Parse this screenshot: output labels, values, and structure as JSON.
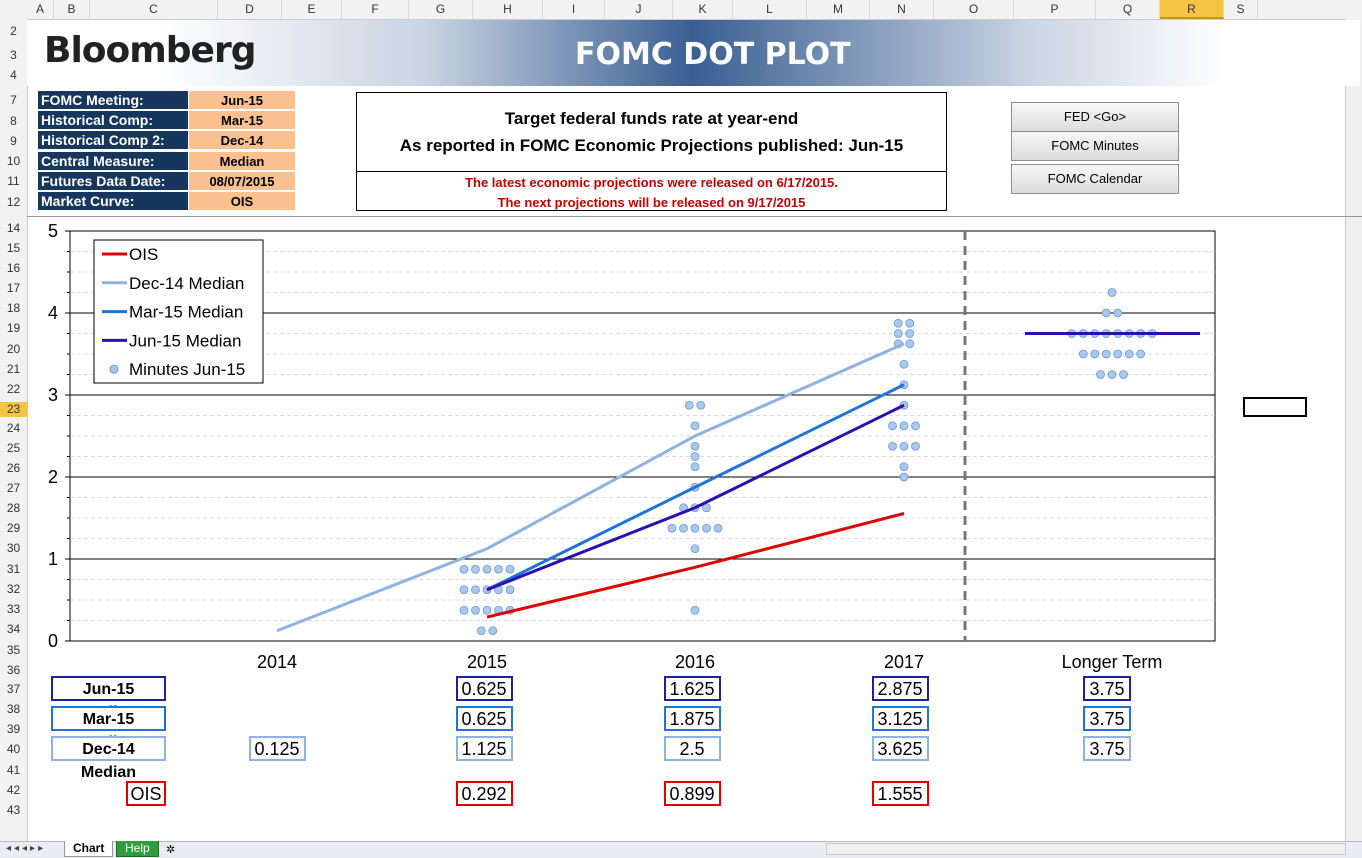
{
  "sheet": {
    "columns": [
      "A",
      "B",
      "C",
      "D",
      "E",
      "F",
      "G",
      "H",
      "I",
      "J",
      "K",
      "L",
      "M",
      "N",
      "O",
      "P",
      "Q",
      "R",
      "S"
    ],
    "rows": [
      "2",
      "3",
      "4",
      "7",
      "8",
      "9",
      "10",
      "11",
      "12",
      "14",
      "15",
      "16",
      "17",
      "18",
      "19",
      "20",
      "21",
      "22",
      "23",
      "24",
      "25",
      "26",
      "27",
      "28",
      "29",
      "30",
      "31",
      "32",
      "33",
      "34",
      "35",
      "36",
      "37",
      "38",
      "39",
      "40",
      "41",
      "42",
      "43"
    ],
    "selected_column": "R",
    "selected_row": "23",
    "tabs": [
      "Chart",
      "Help"
    ]
  },
  "banner": {
    "logo": "Bloomberg",
    "title": "FOMC DOT PLOT"
  },
  "params": [
    {
      "label": "FOMC Meeting:",
      "value": "Jun-15"
    },
    {
      "label": "Historical Comp:",
      "value": "Mar-15"
    },
    {
      "label": "Historical Comp 2:",
      "value": "Dec-14"
    },
    {
      "label": "Central Measure:",
      "value": "Median"
    },
    {
      "label": "Futures Data Date:",
      "value": "08/07/2015"
    },
    {
      "label": "Market Curve:",
      "value": "OIS"
    }
  ],
  "info": {
    "title1": "Target federal funds rate at year-end",
    "title2": "As reported in FOMC Economic Projections published: Jun-15",
    "note1": "The latest economic projections were released on 6/17/2015.",
    "note2": "The next projections will be released on 9/17/2015"
  },
  "buttons": [
    "FED <Go>",
    "FOMC Minutes",
    "FOMC Calendar"
  ],
  "colors": {
    "ois": "#e00000",
    "dec14": "#8fb2e0",
    "mar15": "#1e74d8",
    "jun15": "#2a10b0",
    "dots": "#a9c8ee"
  },
  "chart_data": {
    "type": "line",
    "x": [
      "2014",
      "2015",
      "2016",
      "2017",
      "Longer Term"
    ],
    "ylim": [
      0,
      5
    ],
    "yticks": [
      "0",
      "1",
      "2",
      "3",
      "4",
      "5"
    ],
    "series": [
      {
        "name": "OIS",
        "values": [
          null,
          0.292,
          0.899,
          1.555,
          null
        ]
      },
      {
        "name": "Dec-14 Median",
        "values": [
          0.125,
          1.125,
          2.5,
          3.625,
          null
        ]
      },
      {
        "name": "Mar-15 Median",
        "values": [
          null,
          0.625,
          1.875,
          3.125,
          null
        ]
      },
      {
        "name": "Jun-15 Median",
        "values": [
          null,
          0.625,
          1.625,
          2.875,
          3.75
        ]
      }
    ],
    "dots_name": "Minutes Jun-15",
    "dots": {
      "2015": [
        [
          0.875,
          5
        ],
        [
          0.625,
          5
        ],
        [
          0.375,
          5
        ],
        [
          0.125,
          2
        ]
      ],
      "2016": [
        [
          2.875,
          2
        ],
        [
          2.625,
          1
        ],
        [
          2.375,
          1
        ],
        [
          2.25,
          1
        ],
        [
          2.125,
          1
        ],
        [
          1.875,
          1
        ],
        [
          1.625,
          3
        ],
        [
          1.375,
          5
        ],
        [
          1.125,
          1
        ],
        [
          0.375,
          1
        ]
      ],
      "2017": [
        [
          3.875,
          2
        ],
        [
          3.75,
          2
        ],
        [
          3.625,
          2
        ],
        [
          3.375,
          1
        ],
        [
          3.125,
          1
        ],
        [
          2.875,
          1
        ],
        [
          2.625,
          3
        ],
        [
          2.375,
          3
        ],
        [
          2.125,
          1
        ],
        [
          2.0,
          1
        ]
      ],
      "Longer Term": [
        [
          4.25,
          1
        ],
        [
          4.0,
          2
        ],
        [
          3.75,
          8
        ],
        [
          3.5,
          6
        ],
        [
          3.25,
          3
        ]
      ]
    },
    "legend": [
      "OIS",
      "Dec-14 Median",
      "Mar-15 Median",
      "Jun-15 Median",
      "Minutes Jun-15"
    ],
    "legend_position": "top-left"
  },
  "table": {
    "rows": [
      {
        "label": "Jun-15 Median",
        "key": "jun",
        "values": [
          "",
          "0.625",
          "1.625",
          "2.875",
          "3.75"
        ]
      },
      {
        "label": "Mar-15 Median",
        "key": "mar",
        "values": [
          "",
          "0.625",
          "1.875",
          "3.125",
          "3.75"
        ]
      },
      {
        "label": "Dec-14 Median",
        "key": "dec",
        "values": [
          "0.125",
          "1.125",
          "2.5",
          "3.625",
          "3.75"
        ]
      },
      {
        "label": "OIS",
        "key": "ois",
        "values": [
          "",
          "0.292",
          "0.899",
          "1.555",
          ""
        ]
      }
    ]
  }
}
